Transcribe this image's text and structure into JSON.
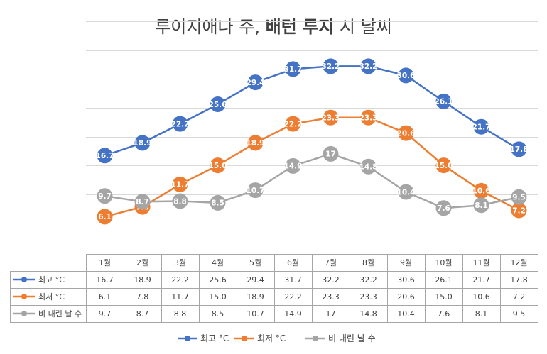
{
  "chart_data": {
    "type": "line",
    "title_prefix": "루이지애나 주, ",
    "title_bold": "배턴 루지",
    "title_suffix": " 시 날씨",
    "categories": [
      "1월",
      "2월",
      "3월",
      "4월",
      "5월",
      "6월",
      "7월",
      "8월",
      "9월",
      "10월",
      "11월",
      "12월"
    ],
    "series": [
      {
        "name": "최고 °C",
        "color": "#4472c4",
        "values": [
          16.7,
          18.9,
          22.2,
          25.6,
          29.4,
          31.7,
          32.2,
          32.2,
          30.6,
          26.1,
          21.7,
          17.8
        ]
      },
      {
        "name": "최저 °C",
        "color": "#ed7d31",
        "values": [
          6.1,
          7.8,
          11.7,
          15.0,
          18.9,
          22.2,
          23.3,
          23.3,
          20.6,
          15.0,
          10.6,
          7.2
        ]
      },
      {
        "name": "비 내린 날 수",
        "color": "#a5a5a5",
        "values": [
          9.7,
          8.7,
          8.8,
          8.5,
          10.7,
          14.9,
          17,
          14.8,
          10.4,
          7.6,
          8.1,
          9.5
        ]
      }
    ],
    "series_labels": [
      [
        "16.7",
        "18.9",
        "22.2",
        "25.6",
        "29.4",
        "31.7",
        "32.2",
        "32.2",
        "30.6",
        "26.1",
        "21.7",
        "17.8"
      ],
      [
        "6.1",
        "7.8",
        "11.7",
        "15.0",
        "18.9",
        "22.2",
        "23.3",
        "23.3",
        "20.6",
        "15.0",
        "10.6",
        "7.2"
      ],
      [
        "9.7",
        "8.7",
        "8.8",
        "8.5",
        "10.7",
        "14.9",
        "17",
        "14.8",
        "10.4",
        "7.6",
        "8.1",
        "9.5"
      ]
    ],
    "ylim": [
      0,
      40
    ],
    "grid": true,
    "data_table": true,
    "legend": "bottom"
  }
}
